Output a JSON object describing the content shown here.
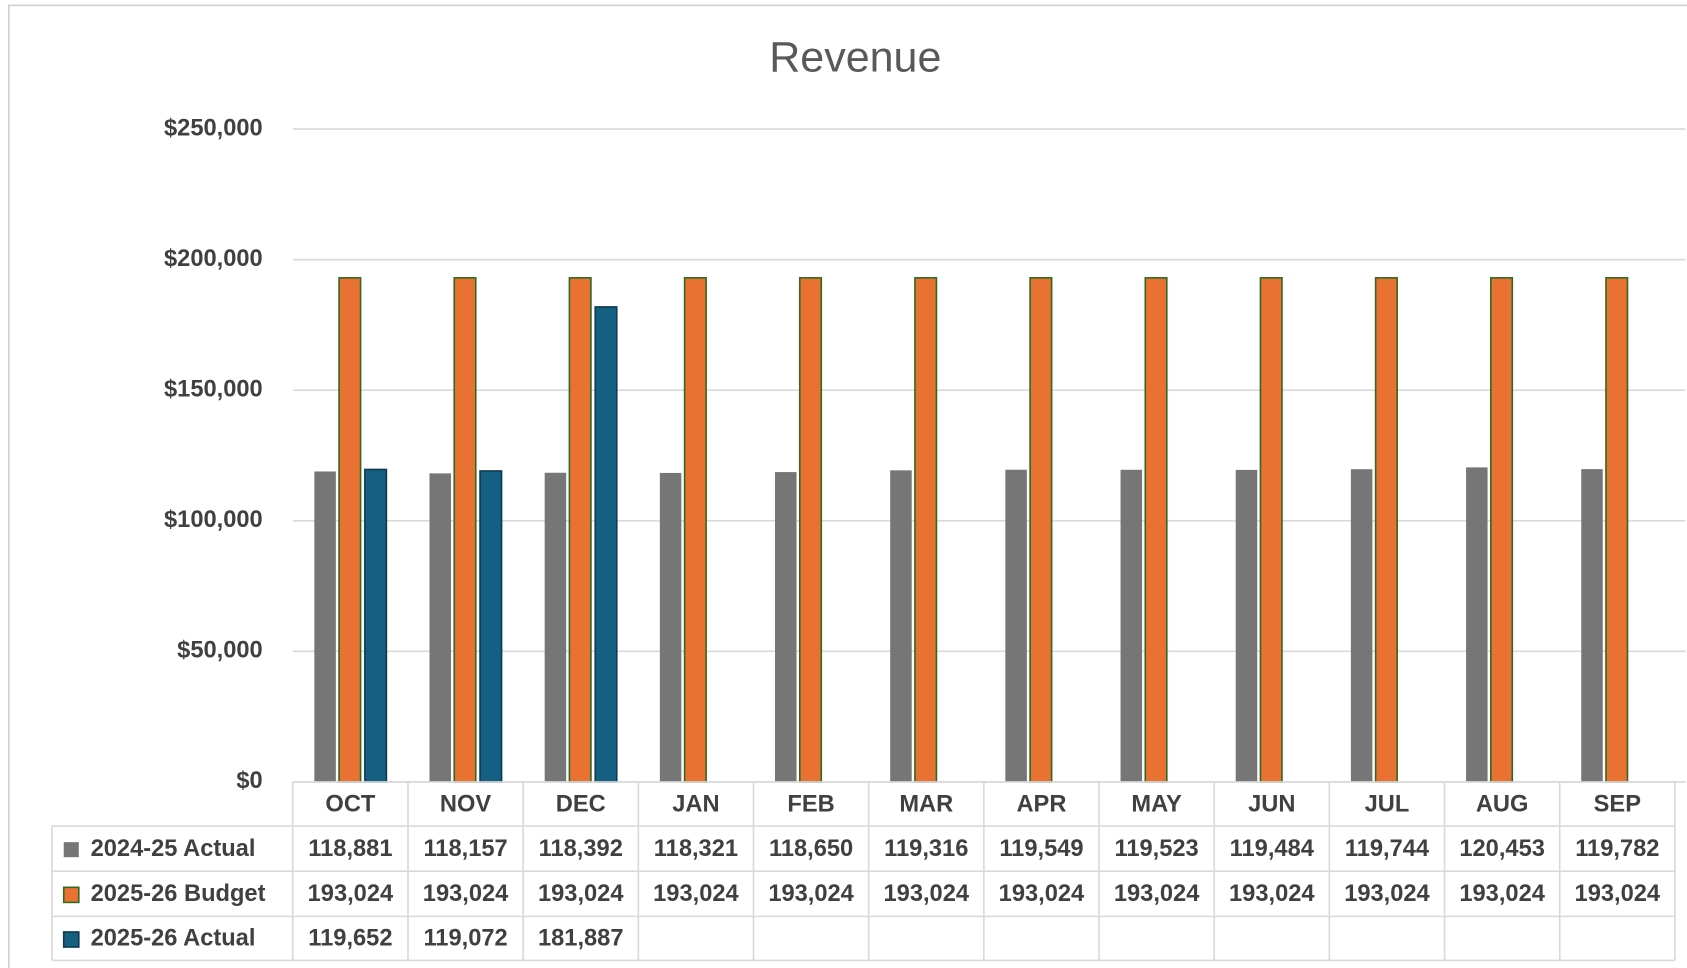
{
  "chart_data": {
    "type": "bar",
    "title": "Revenue",
    "categories": [
      "OCT",
      "NOV",
      "DEC",
      "JAN",
      "FEB",
      "MAR",
      "APR",
      "MAY",
      "JUN",
      "JUL",
      "AUG",
      "SEP"
    ],
    "series": [
      {
        "name": "2024-25 Actual",
        "color": "#767676",
        "values": [
          118881,
          118157,
          118392,
          118321,
          118650,
          119316,
          119549,
          119523,
          119484,
          119744,
          120453,
          119782
        ],
        "value_labels": [
          "118,881",
          "118,157",
          "118,392",
          "118,321",
          "118,650",
          "119,316",
          "119,549",
          "119,523",
          "119,484",
          "119,744",
          "120,453",
          "119,782"
        ]
      },
      {
        "name": "2025-26 Budget",
        "color": "#e97132",
        "values": [
          193024,
          193024,
          193024,
          193024,
          193024,
          193024,
          193024,
          193024,
          193024,
          193024,
          193024,
          193024
        ],
        "value_labels": [
          "193,024",
          "193,024",
          "193,024",
          "193,024",
          "193,024",
          "193,024",
          "193,024",
          "193,024",
          "193,024",
          "193,024",
          "193,024",
          "193,024"
        ]
      },
      {
        "name": "2025-26 Actual",
        "color": "#156082",
        "values": [
          119652,
          119072,
          181887,
          null,
          null,
          null,
          null,
          null,
          null,
          null,
          null,
          null
        ],
        "value_labels": [
          "119,652",
          "119,072",
          "181,887",
          null,
          null,
          null,
          null,
          null,
          null,
          null,
          null,
          null
        ]
      }
    ],
    "ylim": [
      0,
      250000
    ],
    "yticks": [
      {
        "value": 0,
        "label": "$0"
      },
      {
        "value": 50000,
        "label": "$50,000"
      },
      {
        "value": 100000,
        "label": "$100,000"
      },
      {
        "value": 150000,
        "label": "$150,000"
      },
      {
        "value": 200000,
        "label": "$200,000"
      },
      {
        "value": 250000,
        "label": "$250,000"
      }
    ],
    "grid": true
  }
}
